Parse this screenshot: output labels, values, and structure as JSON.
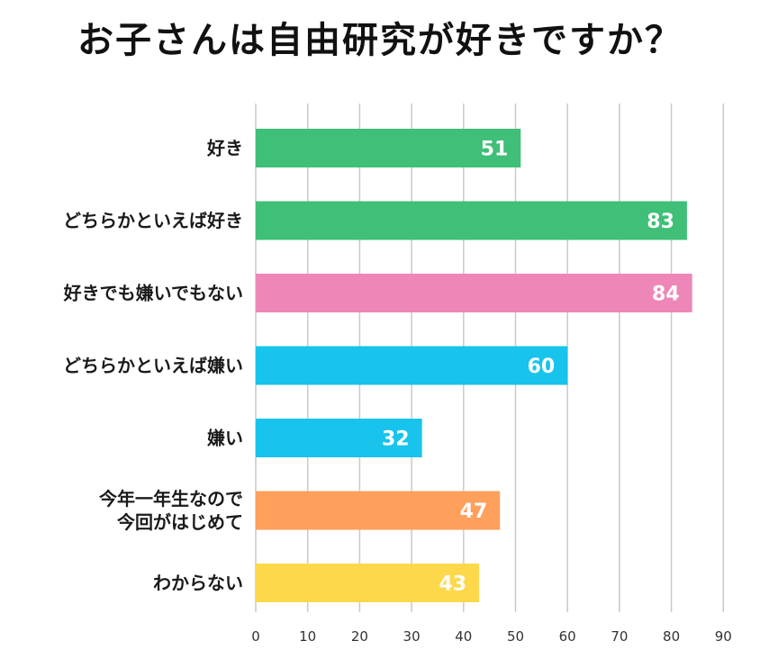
{
  "title": "お子さんは自由研究が好きですか？",
  "chart_data": {
    "type": "bar",
    "orientation": "horizontal",
    "title": "お子さんは自由研究が好きですか？",
    "categories": [
      "好き",
      "どちらかといえば好き",
      "好きでも嫌いでもない",
      "どちらかといえば嫌い",
      "嫌い",
      "今年一年生なので\n今回がはじめて",
      "わからない"
    ],
    "values": [
      51,
      83,
      84,
      60,
      32,
      47,
      43
    ],
    "colors": [
      "#3fbf78",
      "#3fbf78",
      "#ee87b8",
      "#18c3ec",
      "#18c3ec",
      "#ffa05c",
      "#fed84b"
    ],
    "xlim": [
      0,
      90
    ],
    "xticks": [
      0,
      10,
      20,
      30,
      40,
      50,
      60,
      70,
      80,
      90
    ],
    "grid": true,
    "data_labels": true,
    "xlabel": "",
    "ylabel": ""
  }
}
